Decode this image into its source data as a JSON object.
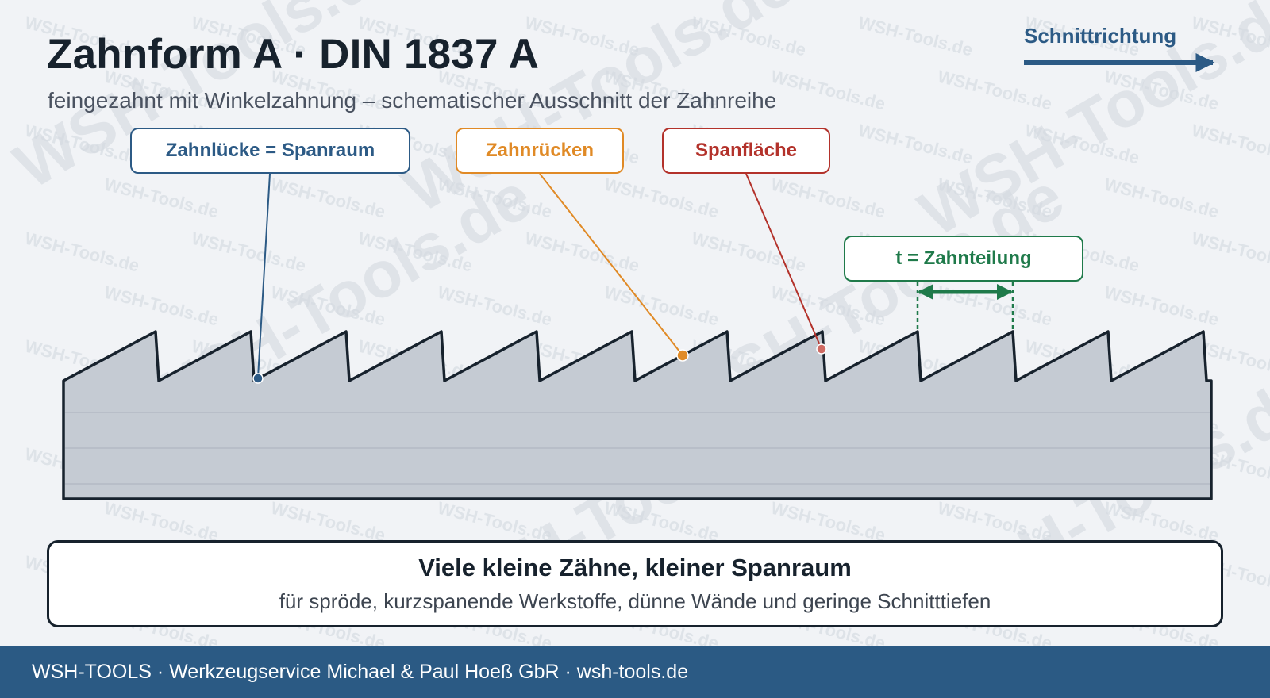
{
  "header": {
    "title": "Zahnform A · DIN 1837 A",
    "subtitle": "feingezahnt mit Winkelzahnung – schematischer Ausschnitt der Zahnreihe"
  },
  "direction": {
    "label": "Schnittrichtung"
  },
  "callouts": {
    "gap": "Zahnlücke = Spanraum",
    "back": "Zahnrücken",
    "face": "Spanfläche",
    "pitch": "t = Zahnteilung"
  },
  "summary": {
    "title": "Viele kleine Zähne, kleiner Spanraum",
    "text": "für spröde, kurzspanende Werkstoffe, dünne Wände und geringe Schnitttiefen"
  },
  "footer": {
    "text": "WSH-TOOLS · Werkzeugservice Michael & Paul Hoeß GbR · wsh-tools.de"
  },
  "watermark": {
    "small": "WSH-Tools.de",
    "large": "WSH-Tools.de"
  },
  "colors": {
    "dark": "#17222d",
    "blue": "#2c5a85",
    "orange": "#e08a26",
    "red": "#b3322b",
    "green": "#1f7a4a",
    "blade_fill": "#c5cbd3",
    "footer_bg": "#2b5a84"
  }
}
